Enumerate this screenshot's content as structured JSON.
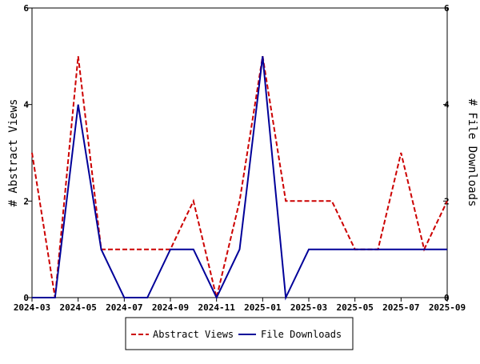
{
  "chart_data": {
    "type": "line",
    "x": [
      "2024-03",
      "2024-04",
      "2024-05",
      "2024-06",
      "2024-07",
      "2024-08",
      "2024-09",
      "2024-10",
      "2024-11",
      "2024-12",
      "2025-01",
      "2025-02",
      "2025-03",
      "2025-04",
      "2025-05",
      "2025-06",
      "2025-07",
      "2025-08",
      "2025-09"
    ],
    "x_tick_labels": [
      "2024-03",
      "2024-05",
      "2024-07",
      "2024-09",
      "2024-11",
      "2025-01",
      "2025-03",
      "2025-05",
      "2025-07",
      "2025-09"
    ],
    "y_ticks": [
      "0",
      "2",
      "4",
      "6"
    ],
    "ylabel_left": "# Abstract Views",
    "ylabel_right": "# File Downloads",
    "ylim": [
      0,
      6
    ],
    "y2lim": [
      0,
      6
    ],
    "grid": false,
    "legend_position": "bottom-center",
    "series": [
      {
        "name": "Abstract Views",
        "axis": "left",
        "color": "#cc0000",
        "style": "dashed",
        "values": [
          3,
          0,
          5,
          1,
          1,
          1,
          1,
          2,
          0,
          2,
          5,
          2,
          2,
          2,
          1,
          1,
          3,
          1,
          2
        ]
      },
      {
        "name": "File Downloads",
        "axis": "right",
        "color": "#000099",
        "style": "solid",
        "values": [
          0,
          0,
          4,
          1,
          0,
          0,
          1,
          1,
          0,
          1,
          5,
          0,
          1,
          1,
          1,
          1,
          1,
          1,
          1
        ]
      }
    ]
  }
}
